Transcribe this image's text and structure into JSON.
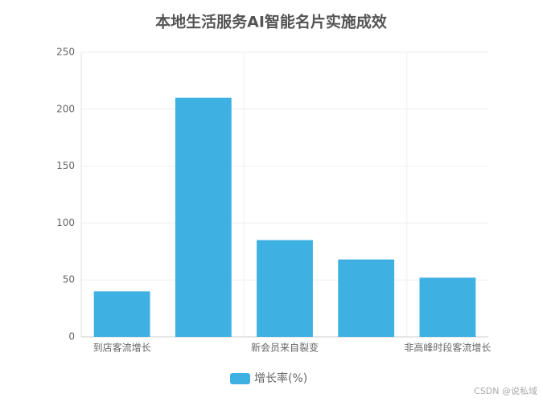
{
  "chart_data": {
    "type": "bar",
    "title": "本地生活服务AI智能名片实施成效",
    "categories": [
      "到店客流增长",
      null,
      "新会员来自裂变",
      null,
      "非高峰时段客流增长"
    ],
    "series": [
      {
        "name": "增长率(%)",
        "color": "#3eb1e2",
        "values": [
          40,
          210,
          85,
          68,
          52
        ]
      }
    ],
    "ylim": [
      0,
      250
    ],
    "yticks": [
      0,
      50,
      100,
      150,
      200,
      250
    ],
    "grid": true,
    "legend": "bottom"
  },
  "watermark": "CSDN @说私域"
}
